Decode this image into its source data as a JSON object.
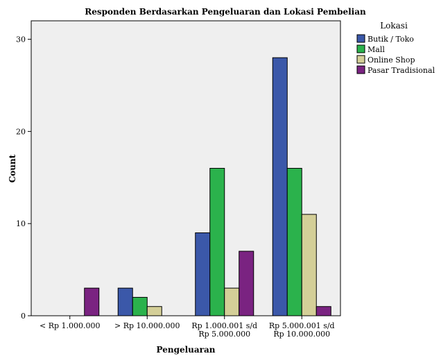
{
  "chart_data": {
    "type": "bar",
    "title": "Responden Berdasarkan Pengeluaran dan Lokasi Pembelian",
    "xlabel": "Pengeluaran",
    "ylabel": "Count",
    "ylim": [
      0,
      32
    ],
    "yticks": [
      0,
      10,
      20,
      30
    ],
    "grid": false,
    "legend_title": "Lokasi",
    "legend_position": "right",
    "categories": [
      [
        "< Rp 1.000.000"
      ],
      [
        "> Rp 10.000.000"
      ],
      [
        "Rp 1.000.001 s/d",
        "Rp 5.000.000"
      ],
      [
        "Rp 5.000.001 s/d",
        "Rp 10.000.000"
      ]
    ],
    "series": [
      {
        "name": "Butik / Toko",
        "color": "#3b58a9",
        "values": [
          0,
          3,
          9,
          28
        ]
      },
      {
        "name": "Mall",
        "color": "#2bb24c",
        "values": [
          0,
          2,
          16,
          16
        ]
      },
      {
        "name": "Online Shop",
        "color": "#d4cf98",
        "values": [
          0,
          1,
          3,
          11
        ]
      },
      {
        "name": "Pasar Tradisional",
        "color": "#7a2381",
        "values": [
          3,
          0,
          7,
          1
        ]
      }
    ]
  }
}
